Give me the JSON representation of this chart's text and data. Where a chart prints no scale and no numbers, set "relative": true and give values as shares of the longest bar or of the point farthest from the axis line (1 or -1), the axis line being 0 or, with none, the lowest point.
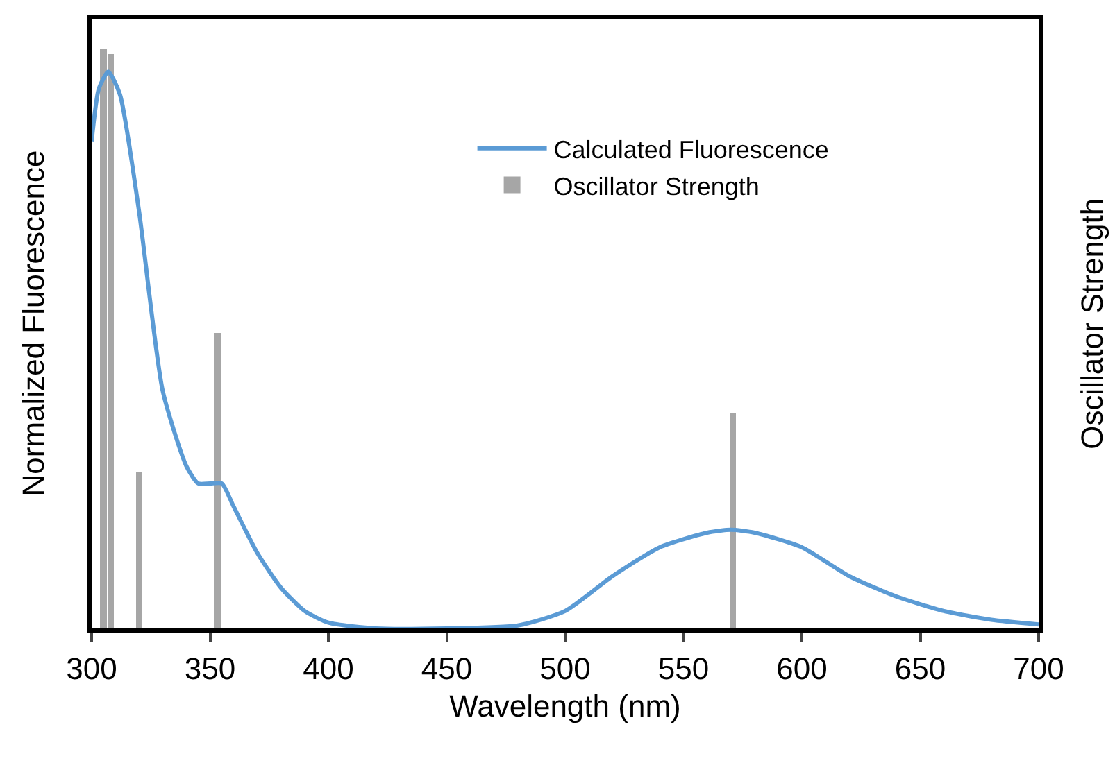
{
  "chart_data": {
    "type": "line",
    "relative": true,
    "xlabel": "Wavelength (nm)",
    "ylabel": "Normalized Fluorescence",
    "y2label": "Oscillator Strength",
    "xlim": [
      300,
      700
    ],
    "xticks": [
      300,
      350,
      400,
      450,
      500,
      550,
      600,
      650,
      700
    ],
    "legend": "top right",
    "grid": false,
    "marker": "none",
    "series": [
      {
        "name": "Calculated Fluorescence",
        "color": "#5b9bd5",
        "x": [
          300,
          303,
          307,
          312,
          320,
          330,
          340,
          345,
          350,
          355,
          360,
          370,
          380,
          390,
          400,
          420,
          450,
          480,
          500,
          520,
          540,
          560,
          570,
          580,
          600,
          620,
          640,
          660,
          680,
          700
        ],
        "values": [
          0.84,
          0.93,
          0.96,
          0.92,
          0.72,
          0.41,
          0.28,
          0.25,
          0.25,
          0.25,
          0.21,
          0.13,
          0.07,
          0.03,
          0.01,
          0,
          0,
          0.005,
          0.03,
          0.09,
          0.14,
          0.165,
          0.17,
          0.165,
          0.14,
          0.09,
          0.055,
          0.03,
          0.015,
          0.007
        ]
      },
      {
        "name": "Oscillator Strength",
        "type": "bar",
        "color": "#a6a6a6",
        "x": [
          305,
          308,
          320,
          353,
          571
        ],
        "values": [
          1,
          0.99,
          0.27,
          0.51,
          0.37
        ]
      }
    ]
  }
}
